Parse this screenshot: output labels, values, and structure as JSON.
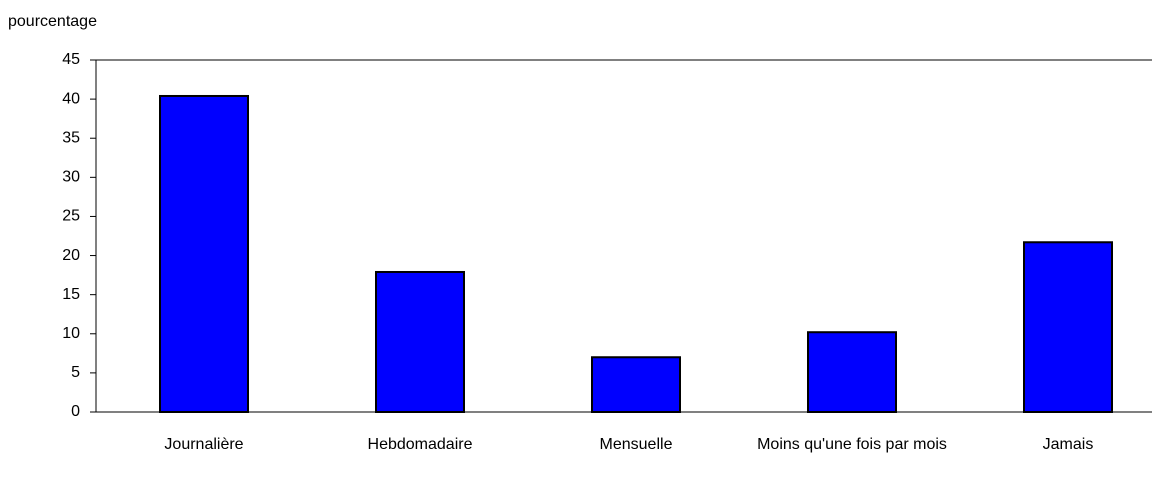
{
  "chart_data": {
    "type": "bar",
    "y_axis_label": "pourcentage",
    "categories": [
      "Journalière",
      "Hebdomadaire",
      "Mensuelle",
      "Moins qu'une fois par mois",
      "Jamais"
    ],
    "values": [
      40.4,
      17.9,
      7.0,
      10.2,
      21.7
    ],
    "color": "#0000ff",
    "ylim": [
      0,
      45
    ],
    "yticks": [
      0,
      5,
      10,
      15,
      20,
      25,
      30,
      35,
      40,
      45
    ],
    "grid": false
  }
}
